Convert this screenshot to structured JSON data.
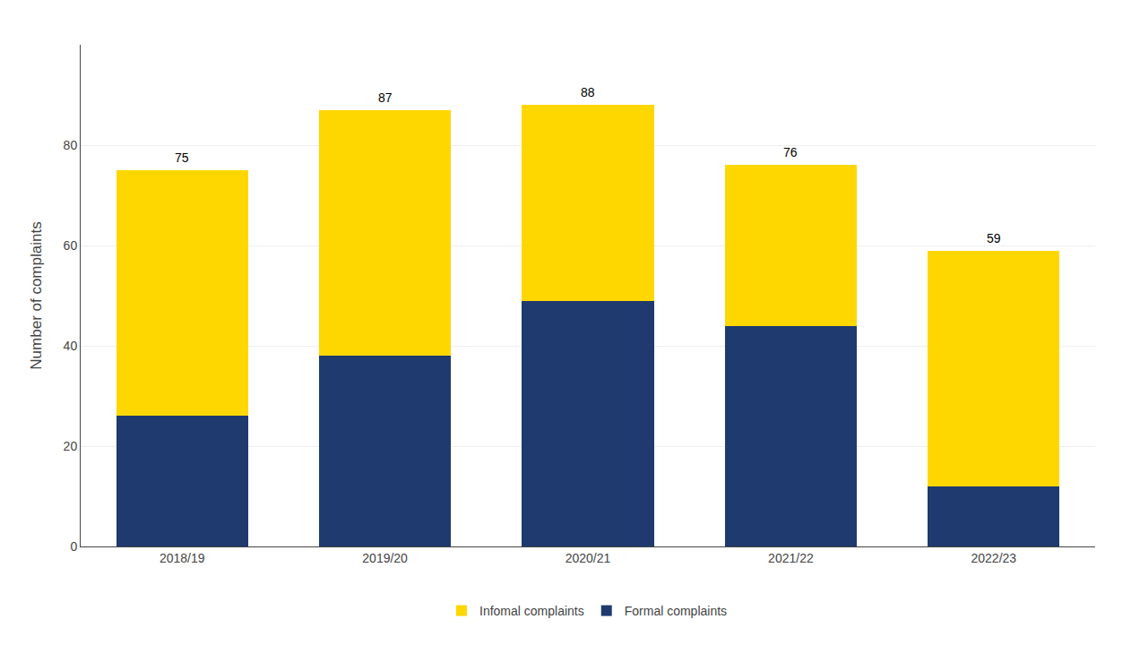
{
  "chart_data": {
    "type": "bar",
    "stacked": true,
    "categories": [
      "2018/19",
      "2019/20",
      "2020/21",
      "2021/22",
      "2022/23"
    ],
    "series": [
      {
        "name": "Formal complaints",
        "color": "#1e3a6e",
        "values": [
          26,
          38,
          49,
          44,
          12
        ]
      },
      {
        "name": "Infomal complaints",
        "color": "#ffd700",
        "values": [
          49,
          49,
          39,
          32,
          47
        ]
      }
    ],
    "totals": [
      75,
      87,
      88,
      76,
      59
    ],
    "ylabel": "Number of complaints",
    "ylim": [
      0,
      100
    ],
    "yticks": [
      0,
      20,
      40,
      60,
      80
    ],
    "grid": true,
    "legend": "bottom"
  }
}
